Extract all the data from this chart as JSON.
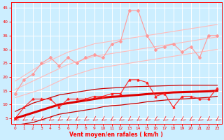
{
  "x": [
    0,
    1,
    2,
    3,
    4,
    5,
    6,
    7,
    8,
    9,
    10,
    11,
    12,
    13,
    14,
    15,
    16,
    17,
    18,
    19,
    20,
    21,
    22,
    23
  ],
  "rafales_data": [
    14,
    19,
    21,
    25,
    27,
    24,
    27,
    25,
    27,
    28,
    27,
    32,
    33,
    44,
    44,
    35,
    30,
    31,
    32,
    29,
    31,
    27,
    35,
    35
  ],
  "vent_data": [
    5,
    9,
    12,
    12,
    12,
    9,
    12,
    12,
    12,
    13,
    13,
    14,
    14,
    19,
    19,
    18,
    13,
    14,
    9,
    13,
    13,
    12,
    12,
    16
  ],
  "rafales_reg": [
    15.5,
    17.0,
    18.5,
    20.0,
    21.5,
    23.0,
    24.5,
    25.5,
    26.5,
    27.5,
    28.0,
    28.5,
    29.0,
    29.5,
    30.0,
    30.5,
    31.0,
    31.5,
    32.0,
    32.5,
    33.0,
    33.5,
    34.0,
    34.5
  ],
  "rafales_reg_upper": [
    18.5,
    20.5,
    22.5,
    24.5,
    26.0,
    27.5,
    29.0,
    30.0,
    31.0,
    32.0,
    32.5,
    33.0,
    33.5,
    34.0,
    34.5,
    35.0,
    35.5,
    36.0,
    36.5,
    37.0,
    37.5,
    38.0,
    38.5,
    39.0
  ],
  "rafales_reg_lower": [
    12.5,
    13.5,
    14.5,
    15.5,
    17.0,
    18.5,
    20.0,
    21.0,
    22.0,
    23.0,
    23.5,
    24.0,
    24.5,
    25.0,
    25.5,
    26.0,
    26.5,
    27.0,
    27.5,
    28.0,
    28.5,
    29.0,
    29.5,
    30.0
  ],
  "vent_reg": [
    5.0,
    6.0,
    7.0,
    8.0,
    9.0,
    10.0,
    10.5,
    11.0,
    11.5,
    12.0,
    12.5,
    12.8,
    13.0,
    13.3,
    13.5,
    13.8,
    14.0,
    14.2,
    14.4,
    14.5,
    14.6,
    14.7,
    14.8,
    15.0
  ],
  "vent_reg_upper": [
    7.5,
    9.0,
    10.5,
    11.5,
    12.5,
    13.5,
    14.0,
    14.5,
    15.0,
    15.5,
    15.8,
    16.0,
    16.2,
    16.4,
    16.5,
    16.6,
    16.7,
    16.8,
    16.9,
    17.0,
    17.0,
    17.0,
    17.0,
    17.0
  ],
  "vent_reg_lower": [
    2.5,
    3.0,
    3.5,
    4.5,
    5.5,
    6.5,
    7.0,
    7.5,
    8.0,
    8.5,
    9.2,
    9.6,
    9.8,
    10.2,
    10.5,
    11.0,
    11.3,
    11.6,
    11.9,
    12.0,
    12.2,
    12.4,
    12.6,
    13.0
  ],
  "color_rafales_data": "#ff9999",
  "color_rafales_reg": "#ffbbbb",
  "color_vent_data": "#ff2222",
  "color_vent_reg": "#cc0000",
  "color_vent_reg_thick": "#dd0000",
  "ylim": [
    3,
    47
  ],
  "yticks": [
    5,
    10,
    15,
    20,
    25,
    30,
    35,
    40,
    45
  ],
  "xticks": [
    0,
    1,
    2,
    3,
    4,
    5,
    6,
    7,
    8,
    9,
    10,
    11,
    12,
    13,
    14,
    15,
    16,
    17,
    18,
    19,
    20,
    21,
    22,
    23
  ],
  "xlabel": "Vent moyen/en rafales ( km/h )",
  "background_color": "#cceeff",
  "grid_color": "#ffffff",
  "tick_color": "#ff0000",
  "label_color": "#ff0000"
}
